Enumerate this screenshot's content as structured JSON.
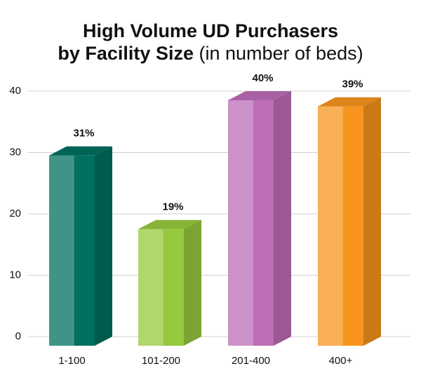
{
  "chart_data": {
    "type": "bar3d",
    "title": [
      "High Volume UD Purchasers",
      "by Facility Size"
    ],
    "subtitle": "(in number of beds)",
    "categories": [
      "1-100",
      "101-200",
      "201-400",
      "400+"
    ],
    "values": [
      31,
      19,
      40,
      39
    ],
    "value_labels": [
      "31%",
      "19%",
      "40%",
      "39%"
    ],
    "colors": [
      "#00705f",
      "#97c93d",
      "#bd6db8",
      "#f7941d"
    ],
    "ylim": [
      0,
      40
    ],
    "yticks": [
      0,
      10,
      20,
      30,
      40
    ],
    "grid": true
  }
}
